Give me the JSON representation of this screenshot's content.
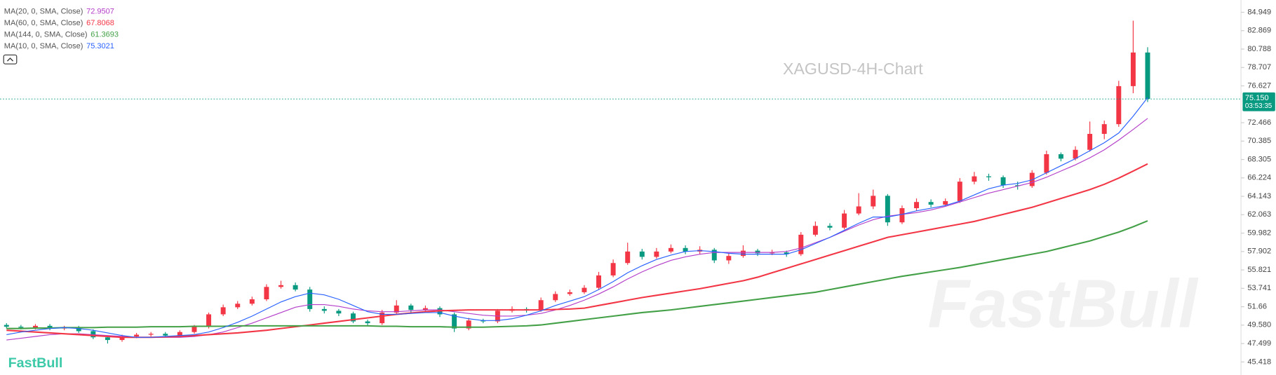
{
  "chart_data": {
    "type": "candlestick",
    "watermark": "XAGUSD-4H-Chart",
    "brand_watermark": "FastBull",
    "logo": "FastBull",
    "up_color": "#f23645",
    "down_color": "#089981",
    "ylim": [
      43.95,
      86.328
    ],
    "yticks": [
      45.418,
      47.499,
      {
        "value": 49.58,
        "label": "49.580"
      },
      51.66,
      53.741,
      55.821,
      57.902,
      59.982,
      62.063,
      64.143,
      66.224,
      68.305,
      70.385,
      72.466,
      76.627,
      78.707,
      80.788,
      82.869,
      84.949
    ],
    "last_price": {
      "value": 75.15,
      "label": "75.150"
    },
    "countdown": "03:53:35",
    "candles": {
      "open": [
        49.6,
        49.4,
        49.3,
        49.5,
        49.2,
        49.3,
        48.9,
        48.2,
        47.9,
        48.3,
        48.5,
        48.6,
        48.4,
        48.8,
        49.4,
        50.8,
        51.6,
        52.0,
        52.5,
        53.9,
        54.1,
        53.6,
        51.4,
        51.2,
        50.9,
        50.0,
        49.8,
        51.0,
        51.8,
        51.3,
        51.5,
        50.8,
        49.2,
        50.1,
        50.0,
        51.2,
        51.4,
        51.3,
        52.4,
        53.1,
        53.3,
        53.8,
        55.2,
        56.6,
        57.9,
        57.3,
        57.9,
        58.3,
        57.9,
        58.1,
        56.9,
        57.4,
        58.0,
        57.7,
        57.8,
        57.6,
        59.8,
        60.8,
        60.6,
        62.2,
        63.0,
        64.2,
        61.2,
        62.8,
        63.5,
        63.2,
        63.6,
        65.8,
        66.4,
        66.3,
        65.4,
        65.3,
        66.8,
        68.9,
        68.4,
        69.4,
        71.2,
        72.3,
        76.6,
        80.4
      ],
      "high": [
        49.8,
        49.6,
        49.7,
        49.7,
        49.5,
        49.5,
        49.1,
        48.4,
        48.5,
        48.7,
        48.8,
        48.8,
        49.0,
        49.6,
        51.0,
        51.9,
        52.3,
        52.8,
        54.2,
        54.6,
        54.4,
        53.9,
        51.7,
        51.4,
        51.1,
        50.2,
        51.3,
        52.4,
        52.0,
        51.8,
        51.7,
        51.0,
        50.4,
        50.3,
        51.4,
        51.7,
        51.6,
        52.7,
        53.4,
        53.6,
        54.1,
        55.6,
        57.0,
        58.9,
        58.2,
        58.3,
        58.7,
        58.6,
        58.5,
        58.3,
        57.7,
        58.6,
        58.2,
        58.1,
        58.0,
        60.1,
        61.3,
        61.1,
        62.6,
        64.5,
        64.9,
        64.4,
        63.1,
        63.9,
        63.8,
        63.9,
        66.2,
        66.9,
        66.7,
        66.5,
        65.8,
        67.1,
        69.3,
        69.1,
        69.8,
        72.6,
        72.7,
        77.2,
        84.0,
        81.0
      ],
      "low": [
        49.2,
        49.1,
        49.1,
        49.0,
        49.0,
        48.7,
        48.0,
        47.5,
        47.7,
        48.1,
        48.3,
        48.2,
        48.2,
        48.6,
        49.2,
        50.6,
        51.4,
        51.8,
        52.3,
        53.7,
        53.4,
        51.1,
        50.9,
        50.6,
        49.8,
        49.5,
        49.6,
        50.8,
        51.0,
        51.1,
        50.5,
        48.8,
        49.0,
        49.8,
        49.8,
        51.0,
        51.0,
        51.1,
        52.2,
        52.9,
        53.1,
        53.6,
        55.0,
        56.4,
        57.0,
        57.1,
        57.7,
        57.6,
        57.6,
        56.6,
        56.5,
        57.2,
        57.4,
        57.5,
        57.3,
        57.4,
        59.6,
        60.3,
        60.4,
        62.0,
        62.7,
        60.8,
        61.0,
        62.5,
        62.9,
        63.0,
        63.4,
        65.5,
        65.9,
        65.1,
        64.9,
        65.1,
        66.6,
        68.1,
        68.2,
        69.2,
        70.6,
        72.0,
        75.8,
        74.8
      ],
      "close": [
        49.4,
        49.3,
        49.5,
        49.2,
        49.3,
        48.9,
        48.2,
        47.9,
        48.3,
        48.5,
        48.6,
        48.4,
        48.8,
        49.4,
        50.8,
        51.6,
        52.0,
        52.5,
        53.9,
        54.1,
        53.6,
        51.4,
        51.2,
        50.9,
        50.0,
        49.8,
        51.0,
        51.8,
        51.3,
        51.5,
        50.8,
        49.2,
        50.1,
        50.0,
        51.2,
        51.4,
        51.3,
        52.4,
        53.1,
        53.3,
        53.8,
        55.2,
        56.6,
        57.9,
        57.3,
        57.9,
        58.3,
        57.9,
        58.1,
        56.9,
        57.4,
        58.0,
        57.7,
        57.8,
        57.6,
        59.8,
        60.8,
        60.6,
        62.2,
        63.0,
        64.2,
        61.2,
        62.8,
        63.5,
        63.2,
        63.6,
        65.8,
        66.4,
        66.3,
        65.4,
        65.3,
        66.8,
        68.9,
        68.4,
        69.4,
        71.2,
        72.3,
        76.6,
        80.4,
        75.15
      ]
    },
    "series": [
      {
        "name": "MA(20, 0, SMA, Close)",
        "color": "#b43ec9",
        "width": 1,
        "values": [
          47.9,
          48.1,
          48.3,
          48.5,
          48.6,
          48.6,
          48.5,
          48.4,
          48.3,
          48.2,
          48.2,
          48.2,
          48.2,
          48.3,
          48.5,
          48.8,
          49.3,
          49.8,
          50.4,
          51.0,
          51.6,
          51.9,
          51.9,
          51.7,
          51.4,
          51.2,
          51.1,
          51.1,
          51.2,
          51.3,
          51.3,
          51.1,
          50.9,
          50.7,
          50.6,
          50.6,
          50.7,
          50.9,
          51.3,
          51.8,
          52.4,
          53.1,
          53.9,
          54.8,
          55.6,
          56.3,
          56.9,
          57.3,
          57.6,
          57.8,
          57.8,
          57.8,
          57.8,
          57.8,
          57.9,
          58.3,
          58.9,
          59.5,
          60.2,
          60.9,
          61.5,
          61.9,
          62.1,
          62.3,
          62.6,
          63.0,
          63.5,
          64.0,
          64.5,
          64.9,
          65.3,
          65.7,
          66.3,
          67.0,
          67.7,
          68.5,
          69.4,
          70.5,
          71.7,
          72.9507
        ]
      },
      {
        "name": "MA(60, 0, SMA, Close)",
        "color": "#f23645",
        "width": 1.8,
        "values": [
          49.0,
          48.9,
          48.8,
          48.7,
          48.6,
          48.5,
          48.4,
          48.3,
          48.2,
          48.2,
          48.2,
          48.25,
          48.3,
          48.4,
          48.5,
          48.6,
          48.7,
          48.85,
          49.0,
          49.2,
          49.4,
          49.6,
          49.8,
          50.0,
          50.2,
          50.4,
          50.6,
          50.8,
          50.95,
          51.1,
          51.2,
          51.25,
          51.3,
          51.3,
          51.3,
          51.3,
          51.3,
          51.3,
          51.35,
          51.4,
          51.5,
          51.8,
          52.1,
          52.4,
          52.7,
          52.95,
          53.2,
          53.45,
          53.7,
          54.0,
          54.3,
          54.6,
          55.0,
          55.5,
          56.0,
          56.5,
          57.0,
          57.5,
          58.0,
          58.5,
          59.0,
          59.5,
          59.8,
          60.1,
          60.4,
          60.7,
          61.0,
          61.3,
          61.7,
          62.1,
          62.5,
          62.9,
          63.4,
          63.9,
          64.4,
          64.9,
          65.5,
          66.2,
          67.0,
          67.8068
        ]
      },
      {
        "name": "MA(144, 0, SMA, Close)",
        "color": "#43a047",
        "width": 1.8,
        "values": [
          49.2,
          49.2,
          49.25,
          49.25,
          49.3,
          49.3,
          49.3,
          49.35,
          49.35,
          49.35,
          49.4,
          49.4,
          49.4,
          49.45,
          49.45,
          49.45,
          49.5,
          49.5,
          49.5,
          49.5,
          49.5,
          49.5,
          49.5,
          49.5,
          49.5,
          49.5,
          49.45,
          49.45,
          49.4,
          49.4,
          49.4,
          49.35,
          49.35,
          49.35,
          49.4,
          49.45,
          49.5,
          49.6,
          49.8,
          50.0,
          50.2,
          50.4,
          50.6,
          50.8,
          51.0,
          51.15,
          51.3,
          51.5,
          51.7,
          51.9,
          52.1,
          52.3,
          52.5,
          52.7,
          52.9,
          53.1,
          53.3,
          53.6,
          53.9,
          54.2,
          54.5,
          54.8,
          55.1,
          55.35,
          55.6,
          55.85,
          56.1,
          56.4,
          56.7,
          57.0,
          57.3,
          57.6,
          57.9,
          58.3,
          58.7,
          59.1,
          59.6,
          60.1,
          60.7,
          61.3693
        ]
      },
      {
        "name": "MA(10, 0, SMA, Close)",
        "color": "#2962ff",
        "width": 1,
        "values": [
          48.5,
          48.8,
          49.0,
          49.2,
          49.3,
          49.2,
          49.0,
          48.7,
          48.4,
          48.2,
          48.2,
          48.3,
          48.4,
          48.5,
          48.8,
          49.3,
          49.9,
          50.6,
          51.4,
          52.2,
          52.8,
          53.2,
          53.0,
          52.5,
          51.8,
          51.1,
          50.8,
          50.8,
          50.9,
          51.0,
          51.0,
          50.6,
          50.3,
          50.1,
          50.1,
          50.3,
          50.7,
          51.2,
          51.8,
          52.3,
          52.8,
          53.6,
          54.5,
          55.5,
          56.3,
          57.0,
          57.5,
          57.9,
          58.0,
          57.9,
          57.7,
          57.6,
          57.6,
          57.6,
          57.6,
          58.1,
          58.8,
          59.5,
          60.3,
          61.1,
          61.8,
          61.8,
          62.1,
          62.5,
          62.8,
          63.1,
          63.6,
          64.3,
          65.0,
          65.4,
          65.6,
          66.0,
          66.8,
          67.6,
          68.4,
          69.3,
          70.2,
          71.3,
          73.2,
          75.3021
        ]
      }
    ]
  }
}
